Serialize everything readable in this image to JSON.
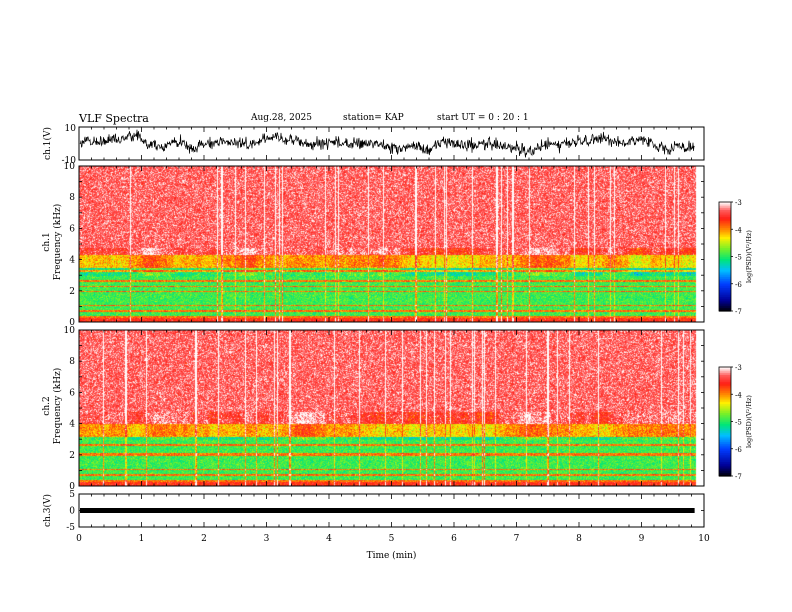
{
  "header": {
    "title": "VLF Spectra",
    "date": "Aug.28, 2025",
    "station": "station= KAP",
    "start": "start  UT  =   0  : 20 : 1"
  },
  "chart_data": [
    {
      "type": "line",
      "title": "ch.1 waveform",
      "ylabel": "ch.1(V)",
      "ylim": [
        -10,
        10
      ],
      "yticks": [
        "10",
        "-10"
      ],
      "xlim": [
        0,
        10
      ],
      "data_end_min": 9.85
    },
    {
      "type": "heatmap",
      "title": "ch.1 spectrogram",
      "ylabel": "ch.1\nFrequency (kHz)",
      "ylim": [
        0,
        10
      ],
      "yticks": [
        "0",
        "2",
        "4",
        "6",
        "8",
        "10"
      ],
      "xlim": [
        0,
        10
      ],
      "data_end_min": 9.85,
      "colorbar": {
        "label": "log(PSD)(V²/Hz)",
        "ticks": [
          "-3",
          "-4",
          "-5",
          "-6",
          "-7"
        ],
        "range": [
          -7,
          -3
        ]
      },
      "bands": [
        {
          "fmin": 4.3,
          "fmax": 10.0,
          "level": -3.3
        },
        {
          "fmin": 3.5,
          "fmax": 4.3,
          "level": -4.0
        },
        {
          "fmin": 0.4,
          "fmax": 3.5,
          "level": -4.9
        },
        {
          "fmin": 0.0,
          "fmax": 0.4,
          "level": -3.6
        }
      ],
      "lines_khz": [
        0.35,
        0.75,
        1.1,
        2.0,
        2.3,
        2.65,
        3.3
      ]
    },
    {
      "type": "heatmap",
      "title": "ch.2 spectrogram",
      "ylabel": "ch.2\nFrequency (kHz)",
      "ylim": [
        0,
        10
      ],
      "yticks": [
        "0",
        "2",
        "4",
        "6",
        "8",
        "10"
      ],
      "xlim": [
        0,
        10
      ],
      "data_end_min": 9.85,
      "colorbar": {
        "label": "log(PSD)(V²/Hz)",
        "ticks": [
          "-3",
          "-4",
          "-5",
          "-6",
          "-7"
        ],
        "range": [
          -7,
          -3
        ]
      },
      "bands": [
        {
          "fmin": 4.0,
          "fmax": 10.0,
          "level": -3.3
        },
        {
          "fmin": 3.2,
          "fmax": 4.0,
          "level": -4.0
        },
        {
          "fmin": 0.4,
          "fmax": 3.2,
          "level": -4.9
        },
        {
          "fmin": 0.0,
          "fmax": 0.4,
          "level": -3.6
        }
      ],
      "lines_khz": [
        0.35,
        0.75,
        1.1,
        2.0,
        2.1,
        2.65
      ]
    },
    {
      "type": "line",
      "title": "ch.3 waveform",
      "ylabel": "ch.3(V)",
      "ylim": [
        -5,
        5
      ],
      "yticks": [
        "5",
        "0",
        "-5"
      ],
      "xlim": [
        0,
        10
      ],
      "data_end_min": 9.85,
      "level": 0.0
    }
  ],
  "xaxis": {
    "label": "Time (min)",
    "ticks": [
      "0",
      "1",
      "2",
      "3",
      "4",
      "5",
      "6",
      "7",
      "8",
      "9",
      "10"
    ],
    "range": [
      0,
      10
    ]
  }
}
